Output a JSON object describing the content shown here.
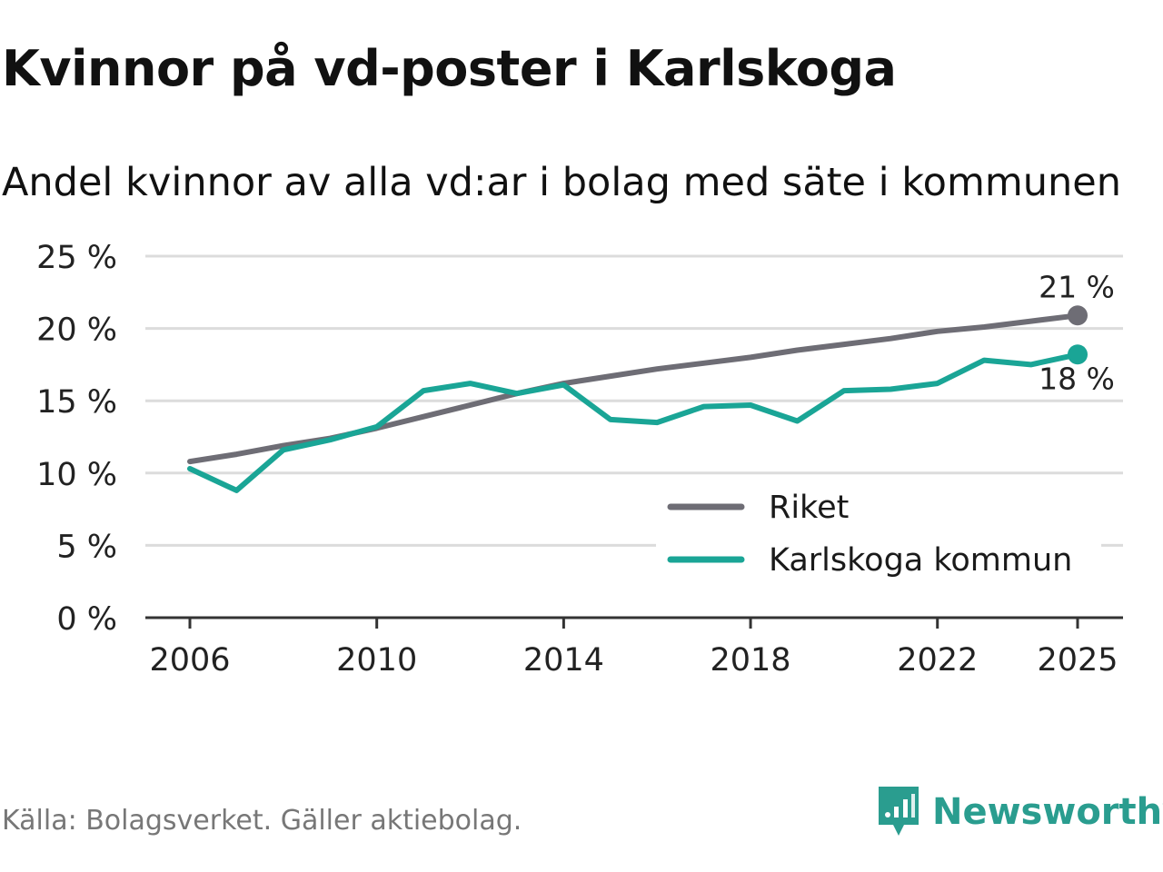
{
  "title": "Kvinnor på vd-poster i Karlskoga",
  "subtitle": "Andel kvinnor av alla vd:ar i bolag med säte i kommunen",
  "source": "Källa: Bolagsverket. Gäller aktiebolag.",
  "brand": {
    "name": "Newsworthy",
    "icon": "newsworthy-logo-icon",
    "color": "#2a9d8f"
  },
  "chart_data": {
    "type": "line",
    "title": "Kvinnor på vd-poster i Karlskoga",
    "subtitle": "Andel kvinnor av alla vd:ar i bolag med säte i kommunen",
    "xlabel": "",
    "ylabel": "",
    "x": [
      2006,
      2007,
      2008,
      2009,
      2010,
      2011,
      2012,
      2013,
      2014,
      2015,
      2016,
      2017,
      2018,
      2019,
      2020,
      2021,
      2022,
      2023,
      2024,
      2025
    ],
    "xticks": [
      2006,
      2010,
      2014,
      2018,
      2022,
      2025
    ],
    "xtick_labels": [
      "2006",
      "2010",
      "2014",
      "2018",
      "2022",
      "2025"
    ],
    "ylim": [
      0,
      25
    ],
    "yticks": [
      0,
      5,
      10,
      15,
      20,
      25
    ],
    "ytick_labels": [
      "0 %",
      "5 %",
      "10 %",
      "15 %",
      "20 %",
      "25 %"
    ],
    "grid": true,
    "legend_position": "bottom-right",
    "series": [
      {
        "name": "Riket",
        "color": "#6e6d75",
        "values": [
          10.8,
          11.3,
          11.9,
          12.4,
          13.1,
          13.9,
          14.7,
          15.5,
          16.2,
          16.7,
          17.2,
          17.6,
          18.0,
          18.5,
          18.9,
          19.3,
          19.8,
          20.1,
          20.5,
          20.9
        ],
        "end_label": "21 %",
        "end_label_placement": "above"
      },
      {
        "name": "Karlskoga kommun",
        "color": "#1aa596",
        "values": [
          10.3,
          8.8,
          11.6,
          12.3,
          13.2,
          15.7,
          16.2,
          15.5,
          16.1,
          13.7,
          13.5,
          14.6,
          14.7,
          13.6,
          15.7,
          15.8,
          16.2,
          17.8,
          17.5,
          18.2
        ],
        "end_label": "18 %",
        "end_label_placement": "below"
      }
    ]
  }
}
